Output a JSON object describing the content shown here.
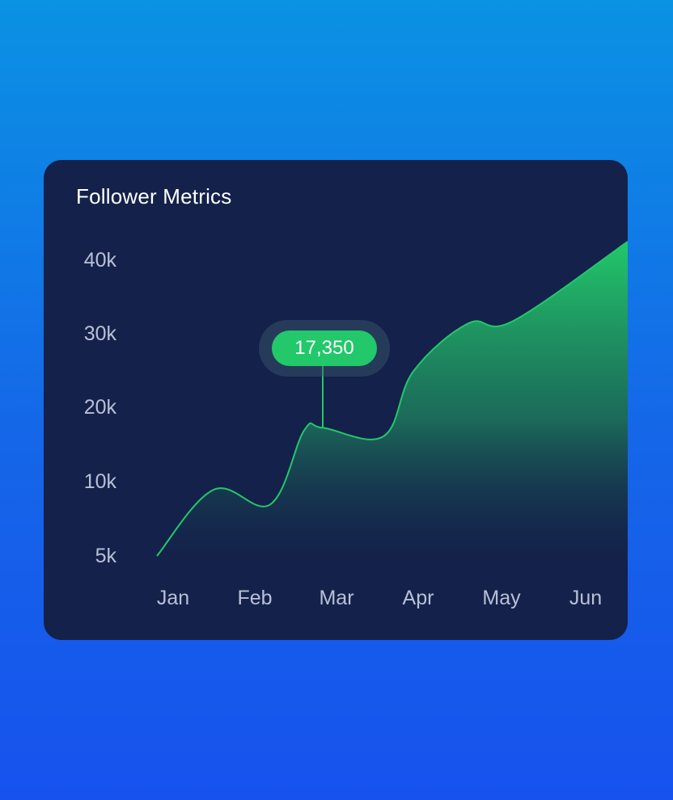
{
  "chart_data": {
    "type": "area",
    "title": "Follower Metrics",
    "xlabel": "",
    "ylabel": "",
    "categories": [
      "Jan",
      "Feb",
      "Mar",
      "Apr",
      "May",
      "Jun"
    ],
    "y_ticks": [
      "5k",
      "10k",
      "20k",
      "30k",
      "40k"
    ],
    "series": [
      {
        "color": "#22c86a",
        "points": [
          {
            "x": "Jan",
            "y": 5000
          },
          {
            "x": "Jan-Feb",
            "y": 9500
          },
          {
            "x": "Feb",
            "y": 8500
          },
          {
            "x": "Feb-Mar",
            "y": 17000
          },
          {
            "x": "Mar",
            "y": 17350
          },
          {
            "x": "Mar-Apr",
            "y": 16200
          },
          {
            "x": "Apr",
            "y": 25000
          },
          {
            "x": "Apr-May",
            "y": 31500
          },
          {
            "x": "May",
            "y": 31800
          },
          {
            "x": "Jun",
            "y": 42500
          }
        ]
      }
    ],
    "highlight": {
      "label": "17,350",
      "x": "Mar",
      "y": 17350
    },
    "grid": false,
    "legend": "none"
  },
  "colors": {
    "accent": "#22c86a",
    "card_background": "#14214a",
    "page_gradient_top": "#0a92e3",
    "page_gradient_bottom": "#1752ee"
  }
}
